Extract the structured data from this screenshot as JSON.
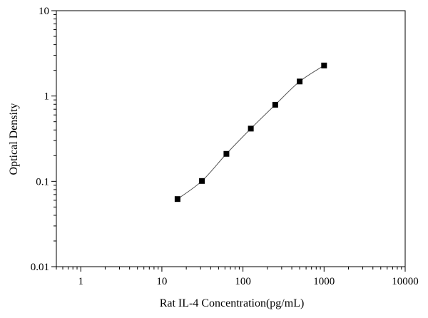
{
  "chart_data": {
    "type": "scatter",
    "title": "",
    "xlabel": "Rat IL-4 Concentration(pg/mL)",
    "ylabel": "Optical Density",
    "x_scale": "log",
    "y_scale": "log",
    "xlim": [
      0.5,
      10000
    ],
    "ylim": [
      0.01,
      10
    ],
    "x_tick_labels": [
      "1",
      "10",
      "100",
      "1000",
      "10000"
    ],
    "y_tick_labels": [
      "0.01",
      "0.1",
      "1",
      "10"
    ],
    "grid": false,
    "marker": "square",
    "line": "smooth",
    "colors": {
      "line": "#555555",
      "marker": "#000000",
      "axis": "#000000"
    },
    "series": [
      {
        "x": [
          15.6,
          31.2,
          62.5,
          125,
          250,
          500,
          1000
        ],
        "y": [
          0.062,
          0.101,
          0.21,
          0.415,
          0.79,
          1.48,
          2.28
        ]
      }
    ]
  }
}
